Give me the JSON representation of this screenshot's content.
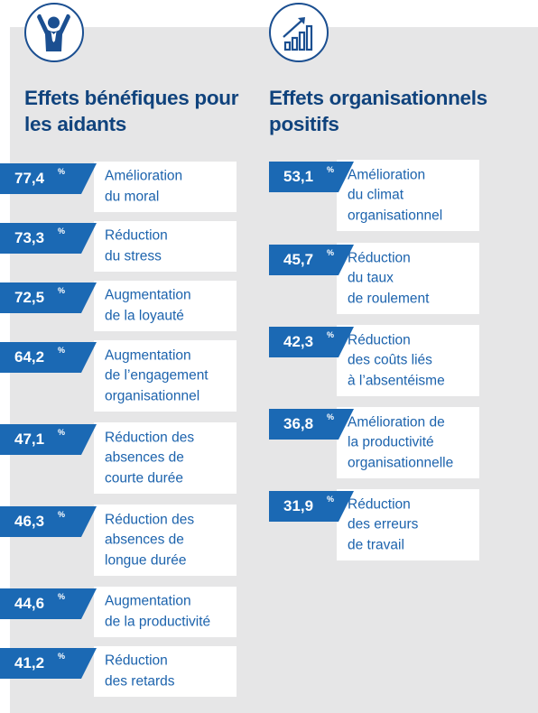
{
  "chart_data": [
    {
      "type": "bar",
      "title": "Effets bénéfiques pour les aidants",
      "unit": "%",
      "categories": [
        "Amélioration\ndu moral",
        "Réduction\ndu stress",
        "Augmentation\nde la loyauté",
        "Augmentation\nde l’engagement\norganisationnel",
        "Réduction des\nabsences de\ncourte durée",
        "Réduction des\nabsences de\nlongue durée",
        "Augmentation\nde la productivité",
        "Réduction\ndes retards"
      ],
      "values": [
        77.4,
        73.3,
        72.5,
        64.2,
        47.1,
        46.3,
        44.6,
        41.2
      ],
      "value_labels": [
        "77,4",
        "73,3",
        "72,5",
        "64,2",
        "47,1",
        "46,3",
        "44,6",
        "41,2"
      ]
    },
    {
      "type": "bar",
      "title": "Effets organisationnels positifs",
      "unit": "%",
      "categories": [
        "Amélioration\ndu climat\norganisationnel",
        "Réduction\ndu taux\nde roulement",
        "Réduction\ndes coûts liés\nà l’absentéisme",
        "Amélioration de\nla productivité\norganisationnelle",
        "Réduction\ndes erreurs\nde travail"
      ],
      "values": [
        53.1,
        45.7,
        42.3,
        36.8,
        31.9
      ],
      "value_labels": [
        "53,1",
        "45,7",
        "42,3",
        "36,8",
        "31,9"
      ]
    }
  ],
  "icons": {
    "left": "person-cheering-icon",
    "right": "growth-chart-icon"
  },
  "colors": {
    "dark_blue": "#10437d",
    "tag_blue": "#1b69b4",
    "text_blue": "#1c63ad",
    "panel_gray": "#e6e6e7"
  }
}
